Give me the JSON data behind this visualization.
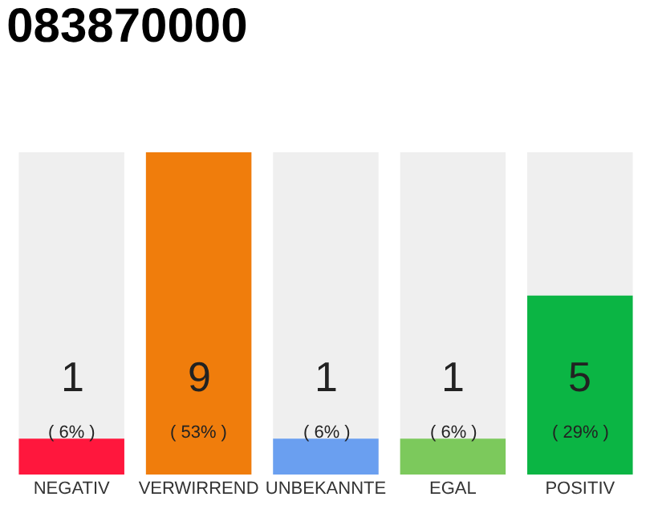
{
  "chart_data": {
    "type": "bar",
    "title": "083870000",
    "categories": [
      "NEGATIV",
      "VERWIRREND",
      "UNBEKANNTE",
      "EGAL",
      "POSITIV"
    ],
    "values": [
      1,
      9,
      1,
      1,
      5
    ],
    "colors": [
      "#ff173d",
      "#f07d0c",
      "#6a9ff0",
      "#7cc95c",
      "#0bb544"
    ],
    "value_labels": [
      "1\n( 6% )",
      "9\n( 53% )",
      "1\n( 6% )",
      "1\n( 6% )",
      "5\n( 29% )"
    ],
    "tick_labels": "x",
    "grid": false,
    "legend": false
  }
}
